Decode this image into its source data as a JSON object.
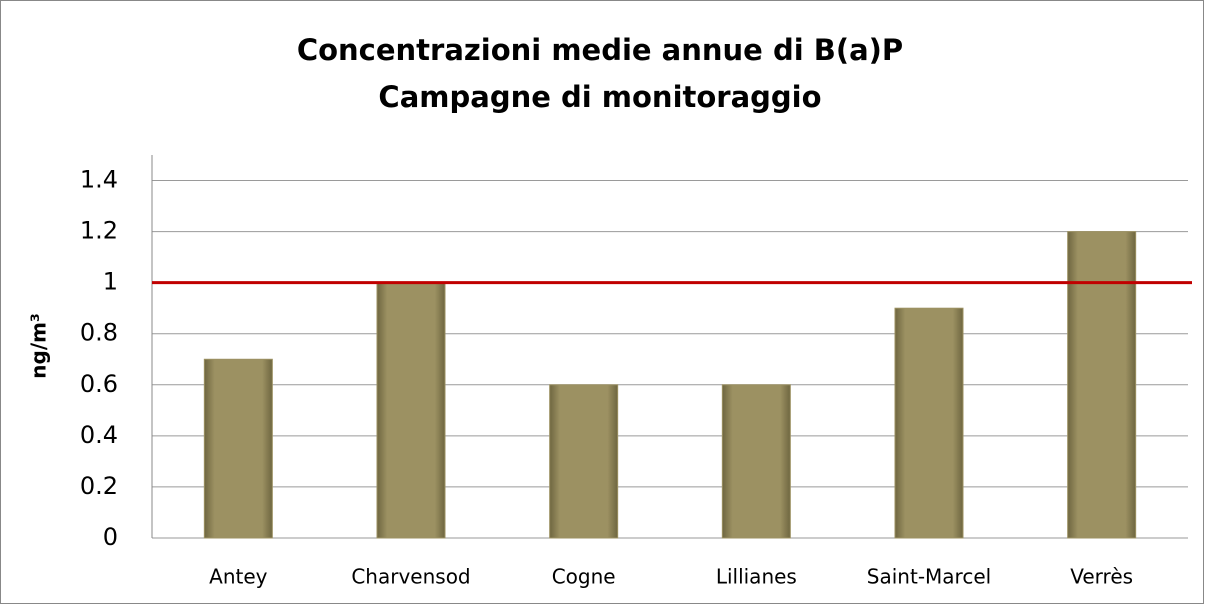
{
  "chart_data": {
    "type": "bar",
    "title": "Concentrazioni medie annue di B(a)P",
    "subtitle": "Campagne di monitoraggio",
    "y_label": "ng/m³",
    "categories": [
      "Antey",
      "Charvensod",
      "Cogne",
      "Lillianes",
      "Saint-Marcel",
      "Verrès"
    ],
    "values": [
      0.7,
      1.0,
      0.6,
      0.6,
      0.9,
      1.2
    ],
    "color": "#9c9162",
    "ylim": [
      0,
      1.5
    ],
    "yticks": [
      0,
      0.2,
      0.4,
      0.6,
      0.8,
      1,
      1.2,
      1.4
    ],
    "grid": true,
    "threshold": {
      "value": 1,
      "color": "#c00000"
    }
  }
}
